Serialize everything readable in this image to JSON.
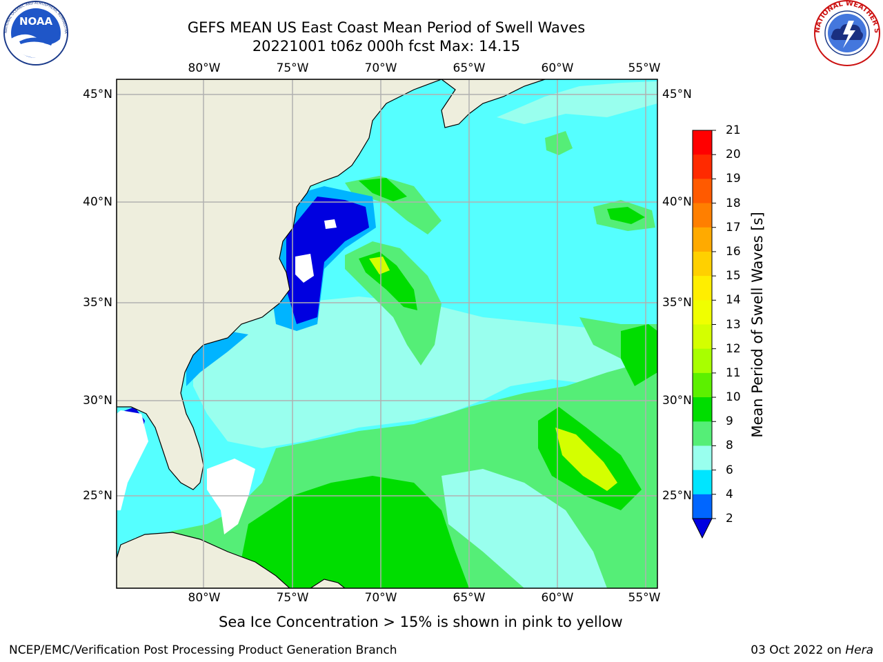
{
  "title": {
    "line1": "GEFS MEAN US East Coast Mean Period of Swell Waves",
    "line2": "20221001 t06z 000h fcst   Max: 14.15"
  },
  "axes": {
    "lon_labels": [
      "80°W",
      "75°W",
      "70°W",
      "65°W",
      "60°W",
      "55°W"
    ],
    "lat_labels": [
      "45°N",
      "40°N",
      "35°N",
      "30°N",
      "25°N"
    ]
  },
  "colorbar": {
    "label": "Mean Period of Swell Waves [s]",
    "ticks": [
      "21",
      "20",
      "19",
      "18",
      "17",
      "16",
      "15",
      "14",
      "13",
      "12",
      "11",
      "10",
      "9",
      "8",
      "6",
      "4",
      "2"
    ],
    "colors": [
      "#ff0000",
      "#ff2a00",
      "#ff5a00",
      "#ff7f00",
      "#ffaa00",
      "#ffd000",
      "#ffee00",
      "#f0ff00",
      "#d4ff00",
      "#a8ff00",
      "#5cf000",
      "#00dd00",
      "#55ee77",
      "#99ffee",
      "#55ffff",
      "#00e5ff",
      "#00b4ff",
      "#0055ff"
    ],
    "extend_color": "#0000e0"
  },
  "note": "Sea Ice Concentration > 15% is shown in pink to yellow",
  "footer": {
    "left": "NCEP/EMC/Verification Post Processing Product Generation Branch",
    "right_date": "03 Oct 2022 on ",
    "right_host": "Hera"
  },
  "logos": {
    "noaa": "NOAA",
    "noaa_ring": "NATIONAL OCEANIC AND ATMOSPHERIC ADMINISTRATION · U.S. DEPARTMENT OF COMMERCE",
    "nws_ring": "NATIONAL WEATHER SERVICE"
  },
  "map_colors": {
    "land": "#eeeedd",
    "ocean_base": "#55ffff",
    "band_9": "#99ffee",
    "band_10": "#55ee77",
    "band_11": "#00dd00",
    "band_13": "#d4ff00",
    "band_4": "#00e5ff",
    "band_2": "#0000e0",
    "grid": "#b0b0b0"
  }
}
